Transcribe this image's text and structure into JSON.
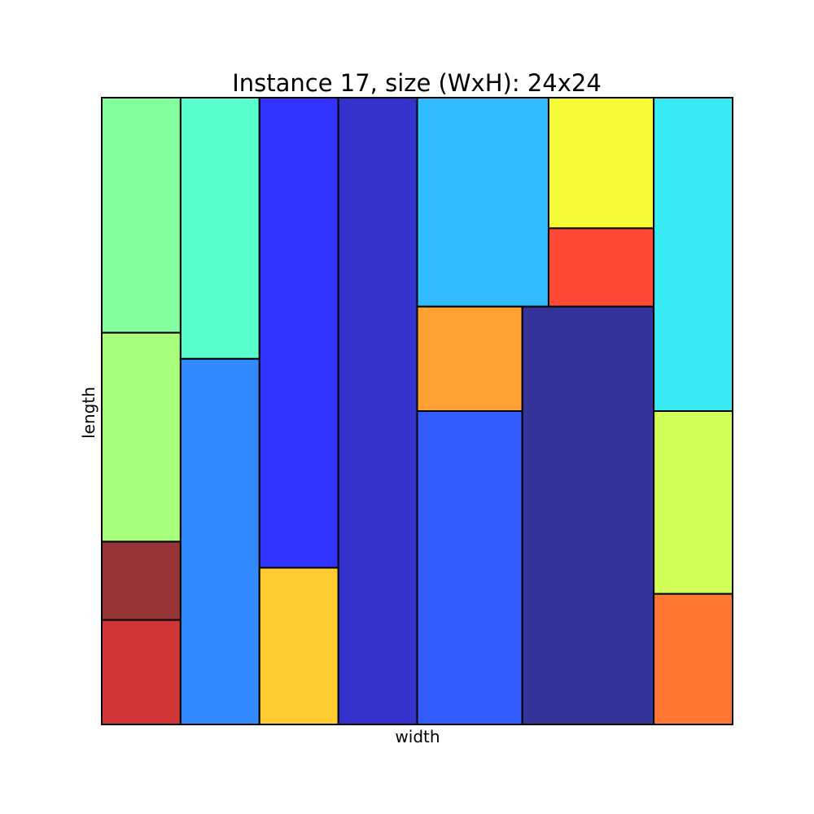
{
  "chart_data": {
    "type": "packing",
    "title": "Instance 17, size (WxH): 24x24",
    "xlabel": "width",
    "ylabel": "length",
    "xlim": [
      0,
      24
    ],
    "ylim": [
      0,
      24
    ],
    "grid": false,
    "rectangles": [
      {
        "id": "r1",
        "x": 0,
        "y": 15,
        "w": 3,
        "h": 9,
        "color": "#84ffa0"
      },
      {
        "id": "r2",
        "x": 0,
        "y": 7,
        "w": 3,
        "h": 8,
        "color": "#a8ff7b"
      },
      {
        "id": "r3",
        "x": 0,
        "y": 4,
        "w": 3,
        "h": 3,
        "color": "#963334"
      },
      {
        "id": "r4",
        "x": 0,
        "y": 0,
        "w": 3,
        "h": 4,
        "color": "#d13535"
      },
      {
        "id": "r5",
        "x": 3,
        "y": 14,
        "w": 3,
        "h": 10,
        "color": "#58ffcc"
      },
      {
        "id": "r6",
        "x": 3,
        "y": 0,
        "w": 3,
        "h": 14,
        "color": "#338aff"
      },
      {
        "id": "r7",
        "x": 6,
        "y": 6,
        "w": 3,
        "h": 18,
        "color": "#3333ff"
      },
      {
        "id": "r8",
        "x": 6,
        "y": 0,
        "w": 3,
        "h": 6,
        "color": "#ffcd33"
      },
      {
        "id": "r9",
        "x": 9,
        "y": 0,
        "w": 3,
        "h": 24,
        "color": "#3333cc"
      },
      {
        "id": "r10",
        "x": 12,
        "y": 16,
        "w": 5,
        "h": 8,
        "color": "#33bbff"
      },
      {
        "id": "r11",
        "x": 12,
        "y": 12,
        "w": 4,
        "h": 4,
        "color": "#ffa033"
      },
      {
        "id": "r12",
        "x": 12,
        "y": 0,
        "w": 4,
        "h": 12,
        "color": "#335cff"
      },
      {
        "id": "r13",
        "x": 17,
        "y": 19,
        "w": 4,
        "h": 5,
        "color": "#f6fc35"
      },
      {
        "id": "r14",
        "x": 17,
        "y": 16,
        "w": 4,
        "h": 3,
        "color": "#ff4936"
      },
      {
        "id": "r15",
        "x": 16,
        "y": 0,
        "w": 5,
        "h": 16,
        "color": "#333399"
      },
      {
        "id": "r16",
        "x": 21,
        "y": 12,
        "w": 3,
        "h": 12,
        "color": "#38ebf4"
      },
      {
        "id": "r17",
        "x": 21,
        "y": 5,
        "w": 3,
        "h": 7,
        "color": "#d1ff58"
      },
      {
        "id": "r18",
        "x": 21,
        "y": 0,
        "w": 3,
        "h": 5,
        "color": "#ff7733"
      }
    ]
  }
}
